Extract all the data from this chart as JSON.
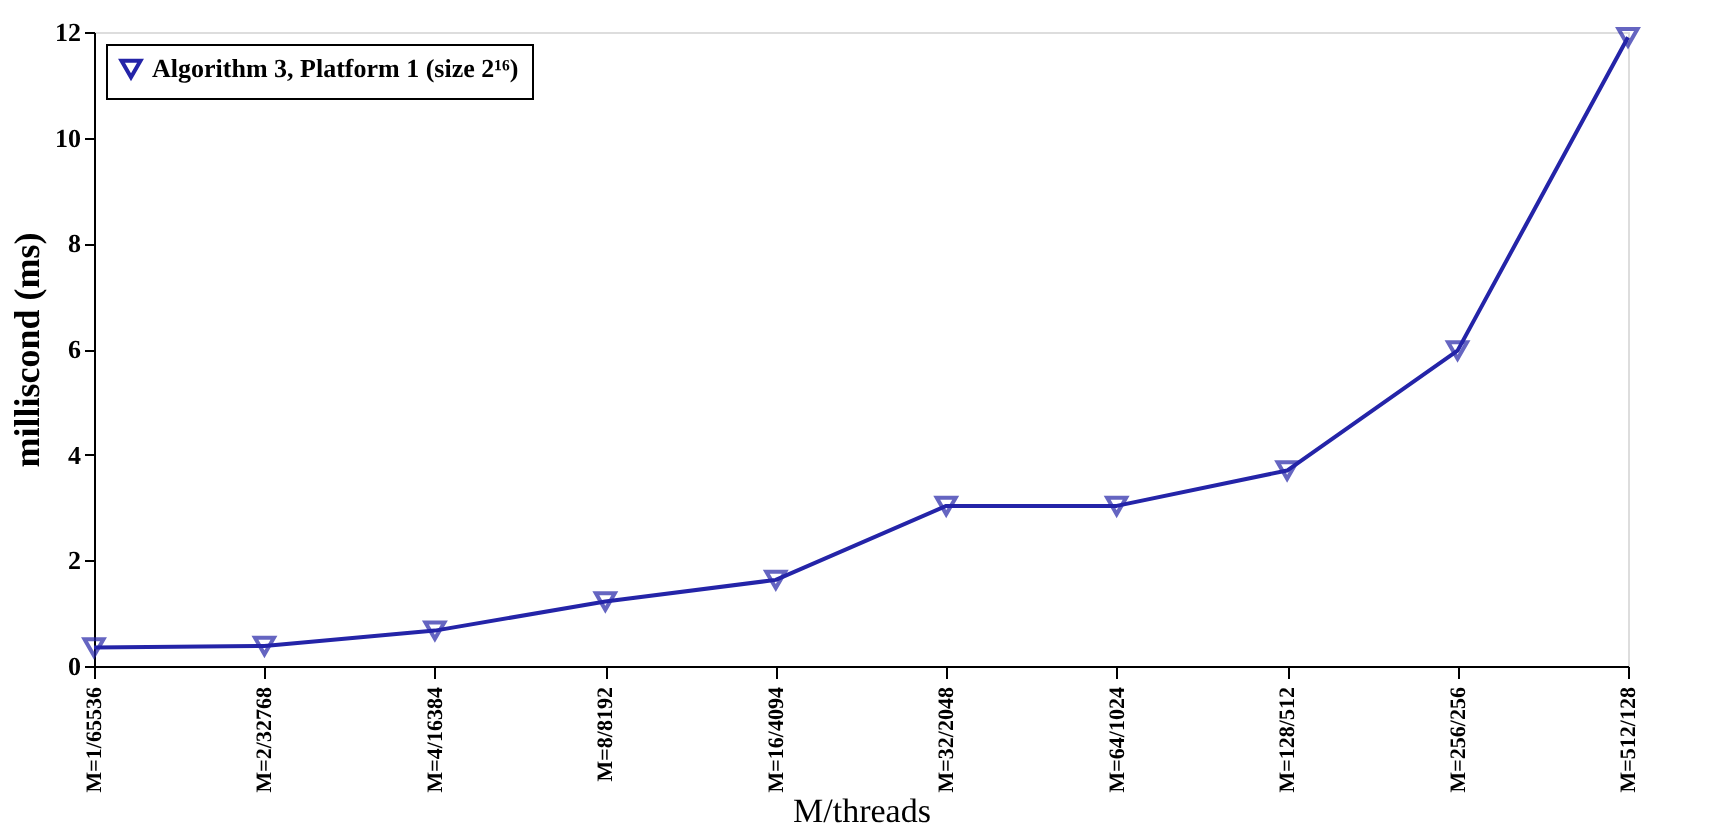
{
  "chart_data": {
    "type": "line",
    "xlabel": "M/threads",
    "ylabel": "milliscond (ms)",
    "categories": [
      "M=1/65536",
      "M=2/32768",
      "M=4/16384",
      "M=8/8192",
      "M=16/4094",
      "M=32/2048",
      "M=64/1024",
      "M=128/512",
      "M=256/256",
      "M=512/128"
    ],
    "series": [
      {
        "name": "Algorithm 3, Platform 1 (size 2¹⁶)",
        "color": "#2424a8",
        "values": [
          0.35,
          0.38,
          0.67,
          1.22,
          1.63,
          3.03,
          3.03,
          3.7,
          5.97,
          11.9
        ]
      }
    ],
    "ylim": [
      0,
      12
    ],
    "yticks": [
      0,
      2,
      4,
      6,
      8,
      10,
      12
    ],
    "grid": false,
    "legend": "top left",
    "marker": "triangle",
    "line_style": "solid"
  }
}
